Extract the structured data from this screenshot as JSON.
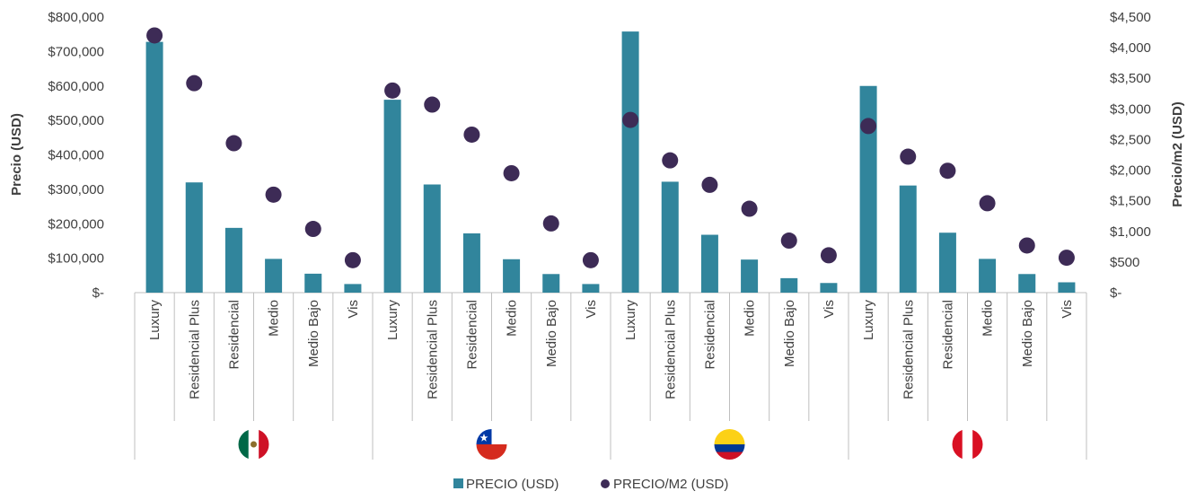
{
  "chart_data": {
    "type": "bar",
    "groups": [
      {
        "flag": "mexico-flag",
        "categories": [
          "Luxury",
          "Residencial Plus",
          "Residencial",
          "Medio",
          "Medio Bajo",
          "Vis"
        ]
      },
      {
        "flag": "chile-flag",
        "categories": [
          "Luxury",
          "Residencial Plus",
          "Residencial",
          "Medio",
          "Medio Bajo",
          "Vis"
        ]
      },
      {
        "flag": "colombia-flag",
        "categories": [
          "Luxury",
          "Residencial Plus",
          "Residencial",
          "Medio",
          "Medio Bajo",
          "Vis"
        ]
      },
      {
        "flag": "peru-flag",
        "categories": [
          "Luxury",
          "Residencial Plus",
          "Residencial",
          "Medio",
          "Medio Bajo",
          "Vis"
        ]
      }
    ],
    "series": [
      {
        "name": "PRECIO (USD)",
        "type": "bar",
        "axis": "left",
        "color": "#31859c",
        "values": [
          728000,
          320000,
          188000,
          98000,
          55000,
          25000,
          560000,
          314000,
          172000,
          97000,
          54000,
          25000,
          758000,
          322000,
          168000,
          96000,
          42000,
          28000,
          600000,
          311000,
          174000,
          98000,
          54000,
          30000
        ]
      },
      {
        "name": "PRECIO/M2 (USD)",
        "type": "scatter",
        "axis": "right",
        "color": "#3d2b56",
        "values": [
          4200,
          3420,
          2440,
          1600,
          1040,
          530,
          3300,
          3070,
          2580,
          1950,
          1130,
          530,
          2820,
          2160,
          1760,
          1370,
          850,
          610,
          2720,
          2220,
          1990,
          1460,
          770,
          570
        ]
      }
    ],
    "ylabel": "Precio (USD)",
    "ylabel_right": "Precio/m2 (USD)",
    "ylim": [
      0,
      800000
    ],
    "ylim_right": [
      0,
      4500
    ],
    "yticks": [
      "$-",
      "$100,000",
      "$200,000",
      "$300,000",
      "$400,000",
      "$500,000",
      "$600,000",
      "$700,000",
      "$800,000"
    ],
    "yticks_right": [
      "$-",
      "$500",
      "$1,000",
      "$1,500",
      "$2,000",
      "$2,500",
      "$3,000",
      "$3,500",
      "$4,000",
      "$4,500"
    ],
    "grid": false,
    "legend_position": "bottom"
  },
  "colors": {
    "bar": "#31859c",
    "marker": "#3d2b56",
    "text": "#404040",
    "axis": "#bfbfbf"
  }
}
